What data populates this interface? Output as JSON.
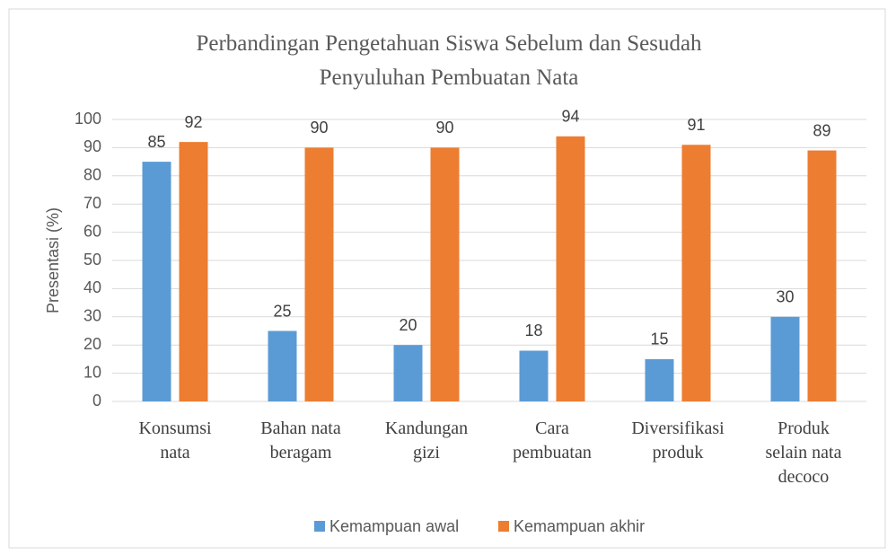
{
  "chart_data": {
    "type": "bar",
    "title": "Perbandingan Pengetahuan Siswa Sebelum dan Sesudah\nPenyuluhan Pembuatan Nata",
    "y_label": "Presentasi (%)",
    "categories": [
      "Konsumsi\nnata",
      "Bahan nata\nberagam",
      "Kandungan\ngizi",
      "Cara\npembuatan",
      "Diversifikasi\nproduk",
      "Produk\nselain nata\ndecoco"
    ],
    "series": [
      {
        "name": "Kemampuan awal",
        "color": "#5b9bd5",
        "values": [
          85,
          25,
          20,
          18,
          15,
          30
        ]
      },
      {
        "name": "Kemampuan akhir",
        "color": "#ed7d31",
        "values": [
          92,
          90,
          90,
          94,
          91,
          89
        ]
      }
    ],
    "ylim": [
      0,
      100
    ],
    "yticks": [
      0,
      10,
      20,
      30,
      40,
      50,
      60,
      70,
      80,
      90,
      100
    ],
    "grid": true,
    "legend": "bottom"
  }
}
